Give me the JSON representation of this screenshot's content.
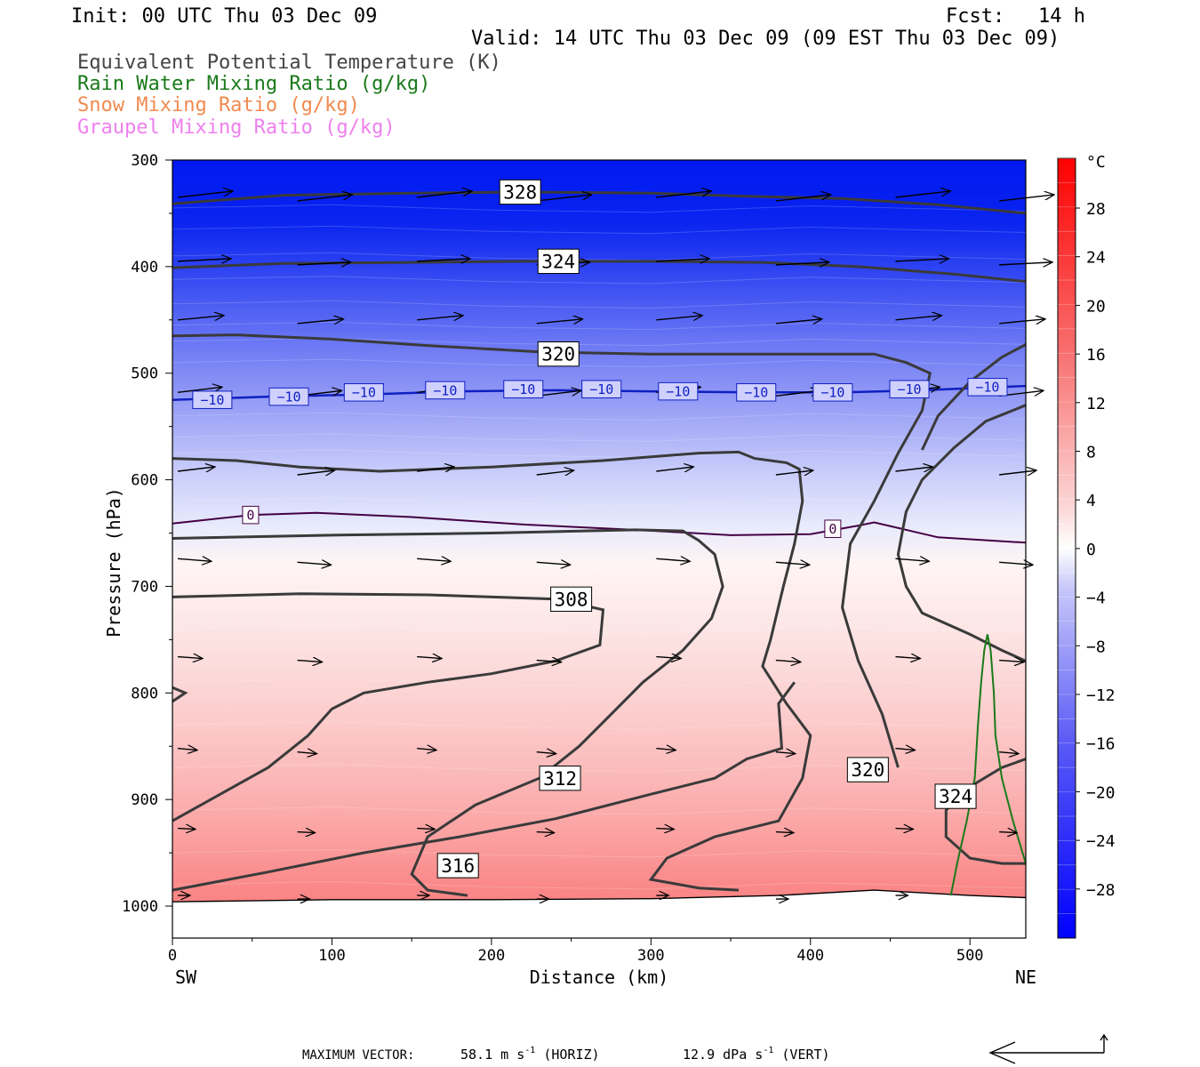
{
  "header": {
    "init": "Init: 00 UTC Thu 03 Dec 09",
    "fcst_label": "Fcst:",
    "fcst_value": "14 h",
    "valid": "Valid: 14 UTC Thu 03 Dec 09 (09 EST Thu 03 Dec 09)"
  },
  "fields": [
    {
      "label": "Equivalent Potential Temperature (K)",
      "color": "#444444"
    },
    {
      "label": "Rain Water Mixing Ratio (g/kg)",
      "color": "#1a7a1a"
    },
    {
      "label": "Snow Mixing Ratio (g/kg)",
      "color": "#f08a50"
    },
    {
      "label": "Graupel Mixing Ratio (g/kg)",
      "color": "#ee80ee"
    }
  ],
  "chart_data": {
    "type": "contour cross-section",
    "xlabel": "Distance (km)",
    "ylabel": "Pressure (hPa)",
    "xlim": [
      0,
      535
    ],
    "ylim": [
      1030,
      300
    ],
    "x_ticks": [
      "0",
      "100",
      "200",
      "300",
      "400",
      "500"
    ],
    "y_ticks": [
      "300",
      "400",
      "500",
      "600",
      "700",
      "800",
      "900",
      "1000"
    ],
    "left_end": "SW",
    "right_end": "NE",
    "colorbar": {
      "unit": "°C",
      "labels": [
        "28",
        "24",
        "20",
        "16",
        "12",
        "8",
        "4",
        "0",
        "−4",
        "−8",
        "−12",
        "−16",
        "−20",
        "−24",
        "−28"
      ]
    },
    "theta_e_labels": [
      {
        "text": "328",
        "x": 218,
        "p": 330
      },
      {
        "text": "324",
        "x": 242,
        "p": 395
      },
      {
        "text": "320",
        "x": 242,
        "p": 482
      },
      {
        "text": "308",
        "x": 250,
        "p": 712
      },
      {
        "text": "312",
        "x": 243,
        "p": 880
      },
      {
        "text": "316",
        "x": 179,
        "p": 962
      },
      {
        "text": "320",
        "x": 436,
        "p": 872
      },
      {
        "text": "324",
        "x": 491,
        "p": 897
      }
    ],
    "isotherm_labels": [
      {
        "text": "−10",
        "x": 25,
        "p": 525
      },
      {
        "text": "−10",
        "x": 73,
        "p": 522
      },
      {
        "text": "−10",
        "x": 120,
        "p": 518
      },
      {
        "text": "−10",
        "x": 171,
        "p": 516
      },
      {
        "text": "−10",
        "x": 220,
        "p": 515
      },
      {
        "text": "−10",
        "x": 269,
        "p": 515
      },
      {
        "text": "−10",
        "x": 317,
        "p": 517
      },
      {
        "text": "−10",
        "x": 366,
        "p": 518
      },
      {
        "text": "−10",
        "x": 414,
        "p": 518
      },
      {
        "text": "−10",
        "x": 462,
        "p": 515
      },
      {
        "text": "−10",
        "x": 511,
        "p": 513
      },
      {
        "text": "0",
        "x": 49,
        "p": 633
      },
      {
        "text": "0",
        "x": 414,
        "p": 646
      }
    ],
    "max_vector": {
      "label": "MAXIMUM VECTOR:",
      "horiz_value": "58.1",
      "horiz_unit": "m s",
      "horiz_exp": "-1",
      "horiz_tag": "(HORIZ)",
      "vert_value": "12.9",
      "vert_unit": "dPa s",
      "vert_exp": "-1",
      "vert_tag": "(VERT)"
    }
  }
}
